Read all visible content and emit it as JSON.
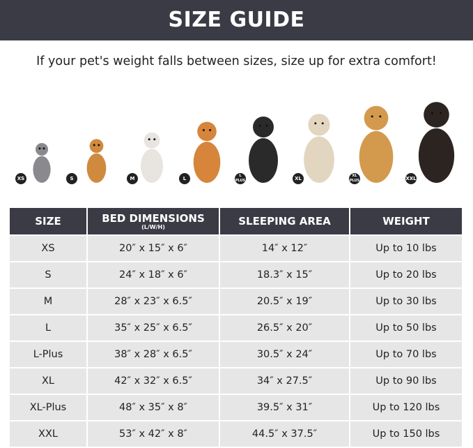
{
  "title": "SIZE GUIDE",
  "subtitle": "If your pet's weight falls between sizes, size up for extra comfort!",
  "pets": [
    {
      "badge": "XS",
      "animal": "cat",
      "color": "#8a8a8e"
    },
    {
      "badge": "S",
      "animal": "pomeranian",
      "color": "#d08a3e"
    },
    {
      "badge": "M",
      "animal": "french-bulldog",
      "color": "#e8e4e0"
    },
    {
      "badge": "L",
      "animal": "shiba-inu",
      "color": "#d6853a"
    },
    {
      "badge": "L PLUS",
      "animal": "border-collie",
      "color": "#2a2a2a"
    },
    {
      "badge": "XL",
      "animal": "labrador",
      "color": "#e2d6c0"
    },
    {
      "badge": "XL PLUS",
      "animal": "golden-retriever",
      "color": "#d39a4e"
    },
    {
      "badge": "XXL",
      "animal": "doberman",
      "color": "#2b2420"
    }
  ],
  "table": {
    "headers": [
      "SIZE",
      "BED DIMENSIONS",
      "SLEEPING AREA",
      "WEIGHT"
    ],
    "header_note": "(L/W/H)",
    "rows": [
      [
        "XS",
        "20″ x 15″ x 6″",
        "14″ x 12″",
        "Up to 10 lbs"
      ],
      [
        "S",
        "24″ x 18″ x 6″",
        "18.3″ x 15″",
        "Up to 20 lbs"
      ],
      [
        "M",
        "28″ x 23″ x 6.5″",
        "20.5″ x 19″",
        "Up to 30 lbs"
      ],
      [
        "L",
        "35″ x 25″ x 6.5″",
        "26.5″ x 20″",
        "Up to 50 lbs"
      ],
      [
        "L-Plus",
        "38″ x 28″ x 6.5″",
        "30.5″ x 24″",
        "Up to 70 lbs"
      ],
      [
        "XL",
        "42″ x 32″ x 6.5″",
        "34″ x 27.5″",
        "Up to 90 lbs"
      ],
      [
        "XL-Plus",
        "48″ x 35″ x 8″",
        "39.5″ x 31″",
        "Up to 120 lbs"
      ],
      [
        "XXL",
        "53″ x 42″ x 8″",
        "44.5″ x 37.5″",
        "Up to 150 lbs"
      ]
    ]
  }
}
